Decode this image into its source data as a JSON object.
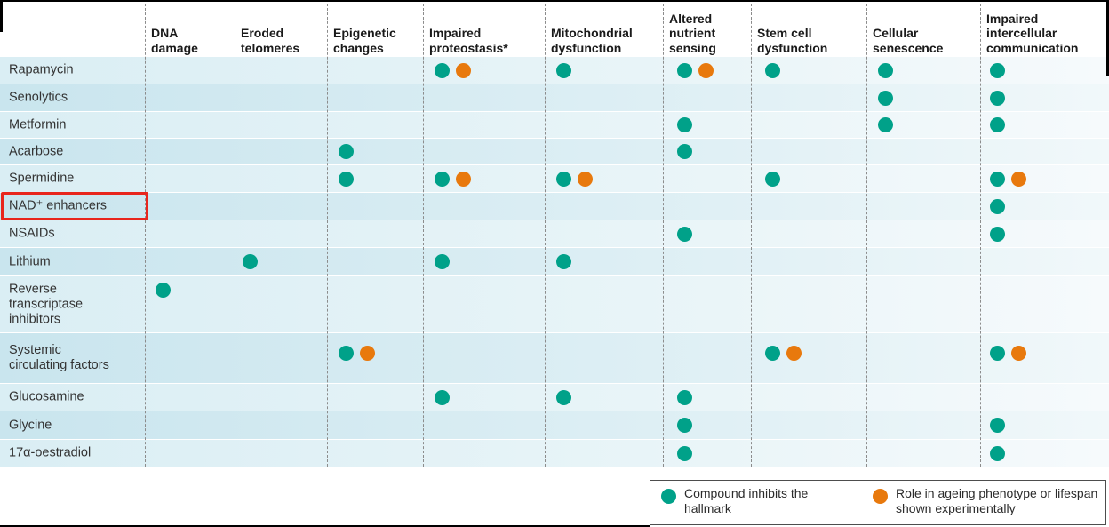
{
  "legend": {
    "items": [
      {
        "name": "inhibits",
        "color": "#00A189",
        "label": "Compound inhibits the hallmark"
      },
      {
        "name": "experimental",
        "color": "#E8790D",
        "label": "Role in ageing phenotype or lifespan shown experimentally"
      }
    ]
  },
  "highlight": {
    "row": "NAD⁺ enhancers",
    "color": "#E8251C"
  },
  "chart_data": {
    "type": "matrix",
    "columns": [
      "DNA damage",
      "Eroded telomeres",
      "Epigenetic changes",
      "Impaired proteostasis*",
      "Mitochondrial dysfunction",
      "Altered nutrient sensing",
      "Stem cell dysfunction",
      "Cellular senescence",
      "Impaired intercellular communication"
    ],
    "column_header_lines": [
      "DNA\ndamage",
      "Eroded\ntelomeres",
      "Epigenetic\nchanges",
      "Impaired\nproteostasis*",
      "Mitochondrial\ndysfunction",
      "Altered\nnutrient\nsensing",
      "Stem cell\ndysfunction",
      "Cellular\nsenescence",
      "Impaired\nintercellular\ncommunication"
    ],
    "cell_values_key": {
      "0": "none",
      "1": "compound inhibits the hallmark",
      "2": "inhibits + role in ageing phenotype or lifespan shown experimentally"
    },
    "colors": {
      "inhibits": "#00A189",
      "experimental": "#E8790D"
    },
    "highlighted_row": "NAD⁺ enhancers",
    "rows": [
      {
        "label": "Rapamycin",
        "cells": [
          0,
          0,
          0,
          2,
          1,
          2,
          1,
          1,
          1
        ]
      },
      {
        "label": "Senolytics",
        "cells": [
          0,
          0,
          0,
          0,
          0,
          0,
          0,
          1,
          1
        ]
      },
      {
        "label": "Metformin",
        "cells": [
          0,
          0,
          0,
          0,
          0,
          1,
          0,
          1,
          1
        ]
      },
      {
        "label": "Acarbose",
        "cells": [
          0,
          0,
          1,
          0,
          0,
          1,
          0,
          0,
          0
        ]
      },
      {
        "label": "Spermidine",
        "cells": [
          0,
          0,
          1,
          2,
          2,
          0,
          1,
          0,
          2
        ]
      },
      {
        "label": "NAD⁺ enhancers",
        "cells": [
          0,
          0,
          0,
          0,
          0,
          0,
          0,
          0,
          1
        ]
      },
      {
        "label": "NSAIDs",
        "cells": [
          0,
          0,
          0,
          0,
          0,
          1,
          0,
          0,
          1
        ]
      },
      {
        "label": "Lithium",
        "cells": [
          0,
          1,
          0,
          1,
          1,
          0,
          0,
          0,
          0
        ]
      },
      {
        "label": "Reverse\ntranscriptase\ninhibitors",
        "cells": [
          1,
          0,
          0,
          0,
          0,
          0,
          0,
          0,
          0
        ]
      },
      {
        "label": "Systemic\ncirculating factors",
        "cells": [
          0,
          0,
          2,
          0,
          0,
          0,
          2,
          0,
          2
        ]
      },
      {
        "label": "Glucosamine",
        "cells": [
          0,
          0,
          0,
          1,
          1,
          1,
          0,
          0,
          0
        ]
      },
      {
        "label": "Glycine",
        "cells": [
          0,
          0,
          0,
          0,
          0,
          1,
          0,
          0,
          1
        ]
      },
      {
        "label": "17α-oestradiol",
        "cells": [
          0,
          0,
          0,
          0,
          0,
          1,
          0,
          0,
          1
        ]
      }
    ]
  }
}
